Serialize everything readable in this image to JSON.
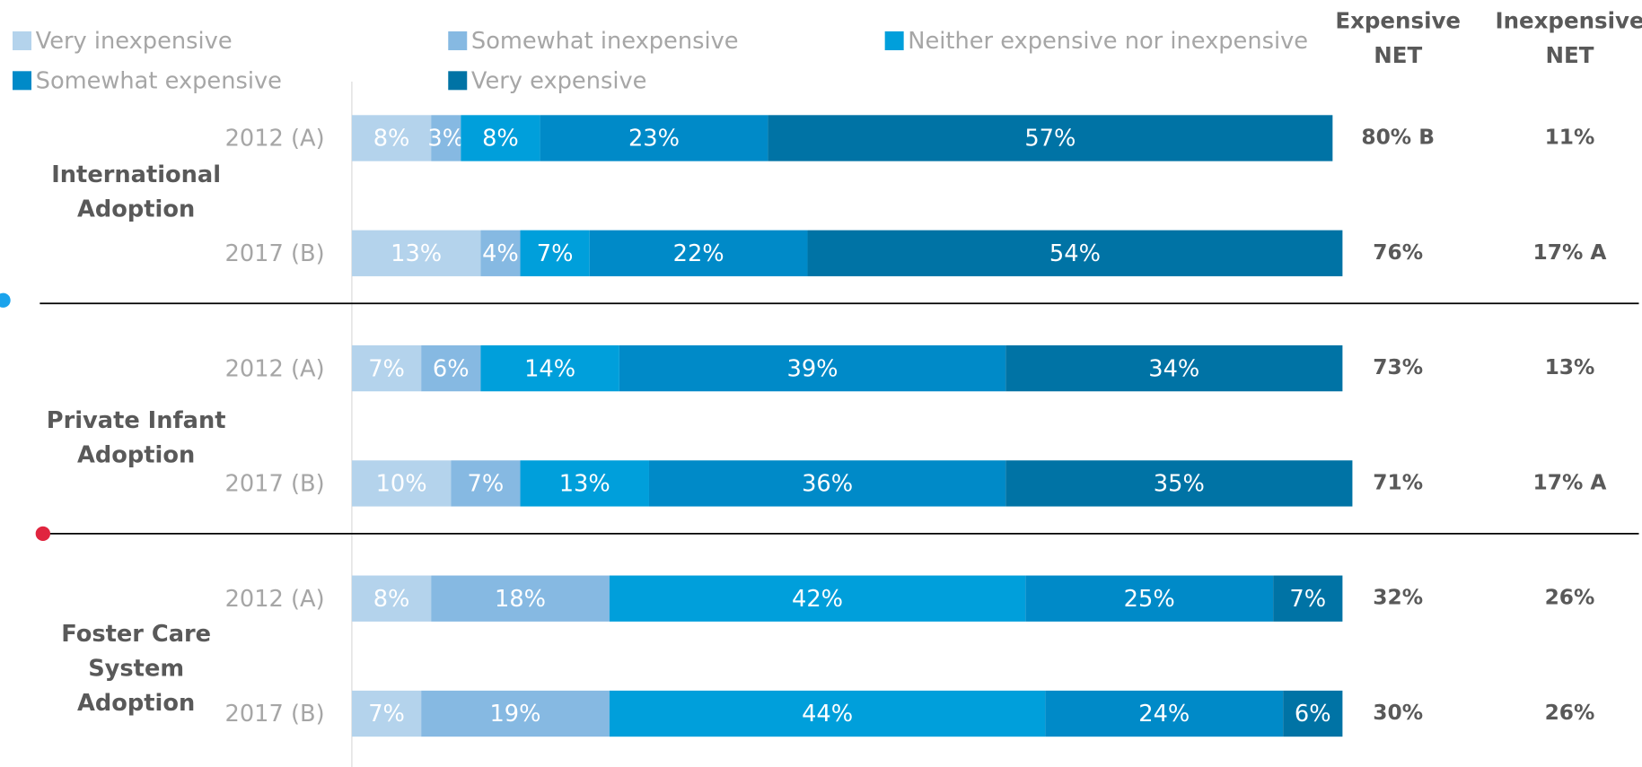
{
  "chart_data": {
    "type": "bar",
    "orientation": "horizontal",
    "stacked": true,
    "groups": [
      "International Adoption",
      "Private Infant Adoption",
      "Foster Care System Adoption"
    ],
    "categories": [
      "2012 (A)",
      "2017 (B)",
      "2012 (A)",
      "2017 (B)",
      "2012 (A)",
      "2017 (B)"
    ],
    "xlim": [
      0,
      100
    ],
    "series": [
      {
        "name": "Very inexpensive",
        "color": "#b4d3ec",
        "values": [
          8,
          13,
          7,
          10,
          8,
          7
        ],
        "value_labels": [
          "8%",
          "13%",
          "7%",
          "10%",
          "8%",
          "7%"
        ]
      },
      {
        "name": "Somewhat inexpensive",
        "color": "#86b9e2",
        "values": [
          3,
          4,
          6,
          7,
          18,
          19
        ],
        "value_labels": [
          "3%",
          "4%",
          "6%",
          "7%",
          "18%",
          "19%"
        ]
      },
      {
        "name": "Neither expensive nor inexpensive",
        "color": "#009fdb",
        "values": [
          8,
          7,
          14,
          13,
          42,
          44
        ],
        "value_labels": [
          "8%",
          "7%",
          "14%",
          "13%",
          "42%",
          "44%"
        ]
      },
      {
        "name": "Somewhat expensive",
        "color": "#008ac8",
        "values": [
          23,
          22,
          39,
          36,
          25,
          24
        ],
        "value_labels": [
          "23%",
          "22%",
          "39%",
          "36%",
          "25%",
          "24%"
        ]
      },
      {
        "name": "Very expensive",
        "color": "#0073a5",
        "values": [
          57,
          54,
          34,
          35,
          7,
          6
        ],
        "value_labels": [
          "57%",
          "54%",
          "34%",
          "35%",
          "7%",
          "6%"
        ]
      }
    ],
    "net_columns": [
      {
        "title": "Expensive NET",
        "values": [
          80,
          76,
          73,
          71,
          32,
          30
        ],
        "value_labels": [
          "80% B",
          "76%",
          "73%",
          "71%",
          "32%",
          "30%"
        ]
      },
      {
        "title": "Inexpensive NET",
        "values": [
          11,
          17,
          13,
          17,
          26,
          26
        ],
        "value_labels": [
          "11%",
          "17% A",
          "13%",
          "17% A",
          "26%",
          "26%"
        ]
      }
    ]
  }
}
